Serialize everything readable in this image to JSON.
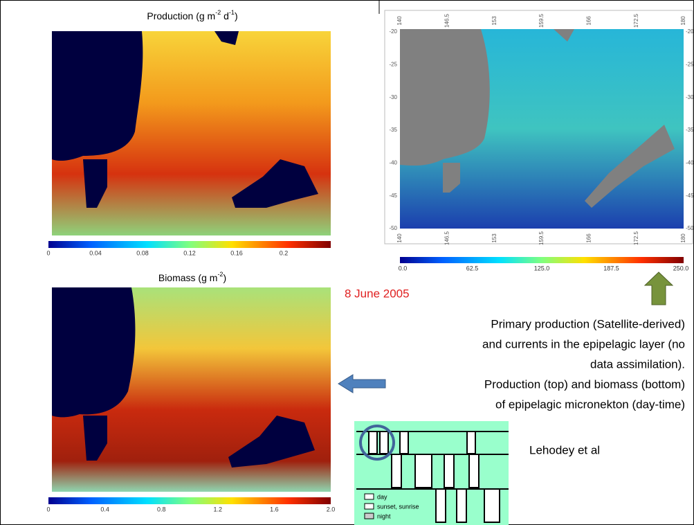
{
  "production_map": {
    "title": [
      "Production (g m",
      "-2",
      " d",
      "-1",
      ")"
    ],
    "colorbar_ticks": [
      "0",
      "0.04",
      "0.08",
      "0.12",
      "0.16",
      "0.2"
    ]
  },
  "biomass_map": {
    "title": [
      "Biomass (g m",
      "-2",
      ")"
    ],
    "colorbar_ticks": [
      "0",
      "0.4",
      "0.8",
      "1.2",
      "1.6",
      "2.0"
    ]
  },
  "satellite_map": {
    "x_ticks": [
      "140",
      "146.5",
      "153",
      "159.5",
      "166",
      "172.5",
      "180"
    ],
    "y_ticks": [
      "-20",
      "-25",
      "-30",
      "-35",
      "-40",
      "-45",
      "-50"
    ],
    "colorbar_ticks": [
      "0.0",
      "62.5",
      "125.0",
      "187.5",
      "250.0"
    ]
  },
  "date": "8 June 2005",
  "description": [
    "Primary production (Satellite-derived)",
    "and currents in the epipelagic layer (no",
    "data assimilation).",
    "Production (top) and biomass (bottom)",
    "of epipelagic micronekton (day-time)"
  ],
  "credit": "Lehodey et al",
  "legend": [
    "day",
    "sunset, sunrise",
    "night"
  ]
}
